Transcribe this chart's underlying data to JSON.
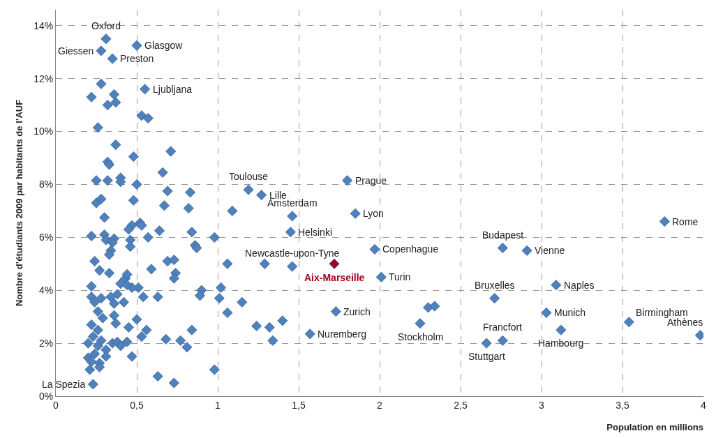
{
  "chart_data": {
    "type": "scatter",
    "xlabel": "Population en millions",
    "ylabel": "Nombre d’étudiants 2009 par habitants de l’AUF",
    "marker": "diamond",
    "grid": true,
    "xlim": [
      0,
      4
    ],
    "xticks": [
      0,
      {
        "value": 0.5,
        "label": "0,5"
      },
      1,
      {
        "value": 1.5,
        "label": "1,5"
      },
      2,
      {
        "value": 2.5,
        "label": "2,5"
      },
      3,
      {
        "value": 3.5,
        "label": "3,5"
      },
      4
    ],
    "ylim": [
      0,
      14.6
    ],
    "yticks": [
      {
        "value": 0,
        "label": "0%"
      },
      {
        "value": 2,
        "label": "2%"
      },
      {
        "value": 4,
        "label": "4%"
      },
      {
        "value": 6,
        "label": "6%"
      },
      {
        "value": 8,
        "label": "8%"
      },
      {
        "value": 10,
        "label": "10%"
      },
      {
        "value": 12,
        "label": "12%"
      },
      {
        "value": 14,
        "label": "14%"
      }
    ],
    "series": [
      {
        "color": "#4f81bd",
        "x": [
          0.31,
          0.28,
          0.35,
          0.5,
          0.55,
          0.28,
          0.22,
          0.36,
          0.37,
          0.32,
          0.53,
          0.57,
          0.26,
          0.37,
          0.71,
          0.48,
          0.32,
          0.33,
          0.66,
          0.25,
          0.32,
          0.4,
          0.4,
          0.5,
          0.83,
          0.69,
          1.19,
          1.27,
          0.25,
          0.28,
          0.48,
          0.67,
          0.82,
          1.09,
          0.3,
          1.46,
          1.85,
          1.8,
          1.45,
          3.76,
          0.47,
          0.45,
          0.52,
          0.53,
          0.64,
          0.84,
          0.98,
          0.57,
          0.22,
          0.3,
          0.31,
          0.36,
          0.35,
          0.46,
          0.46,
          0.34,
          0.33,
          0.86,
          0.87,
          0.59,
          1.97,
          2.76,
          2.91,
          1.46,
          1.29,
          1.06,
          2.01,
          0.24,
          0.27,
          0.33,
          0.69,
          0.73,
          0.74,
          0.73,
          0.43,
          0.44,
          0.4,
          0.22,
          0.22,
          0.51,
          0.54,
          0.28,
          0.34,
          0.38,
          0.47,
          0.44,
          0.63,
          0.9,
          0.89,
          1.02,
          1.01,
          1.06,
          1.15,
          3.09,
          2.71,
          3.03,
          1.73,
          2.3,
          2.34,
          2.25,
          3.54,
          3.98,
          3.12,
          2.76,
          2.66,
          1.57,
          1.24,
          1.32,
          1.4,
          1.34,
          0.24,
          0.26,
          0.29,
          0.36,
          0.36,
          0.37,
          0.42,
          0.5,
          0.45,
          0.56,
          0.53,
          0.22,
          0.26,
          0.23,
          0.28,
          0.2,
          0.26,
          0.31,
          0.35,
          0.38,
          0.4,
          0.44,
          0.47,
          0.2,
          0.22,
          0.27,
          0.24,
          0.31,
          0.21,
          0.27,
          0.68,
          0.77,
          0.81,
          0.84,
          0.98,
          0.63,
          0.73,
          0.23
        ],
        "values": [
          13.5,
          13.05,
          12.75,
          13.25,
          11.6,
          11.8,
          11.3,
          11.4,
          11.1,
          11.0,
          10.6,
          10.5,
          10.15,
          9.5,
          9.25,
          9.05,
          8.85,
          8.75,
          8.45,
          8.15,
          8.15,
          8.25,
          8.1,
          8.0,
          7.7,
          7.75,
          7.8,
          7.6,
          7.3,
          7.45,
          7.4,
          7.2,
          7.1,
          7.0,
          6.75,
          6.8,
          6.9,
          8.15,
          6.2,
          6.6,
          6.45,
          6.3,
          6.55,
          6.45,
          6.25,
          6.2,
          6.0,
          6.0,
          6.05,
          6.1,
          5.9,
          5.95,
          5.8,
          5.9,
          5.65,
          5.5,
          5.35,
          5.7,
          5.6,
          4.8,
          5.55,
          5.6,
          5.5,
          4.9,
          5.0,
          5.0,
          4.5,
          5.1,
          4.75,
          4.65,
          5.1,
          5.15,
          4.65,
          4.45,
          4.45,
          4.6,
          4.25,
          4.15,
          3.75,
          4.1,
          3.75,
          3.7,
          3.75,
          3.85,
          4.1,
          4.2,
          3.75,
          4.0,
          3.8,
          4.1,
          3.7,
          3.15,
          3.55,
          4.2,
          3.7,
          3.15,
          3.2,
          3.35,
          3.4,
          2.75,
          2.8,
          2.3,
          2.5,
          2.1,
          2.0,
          2.35,
          2.65,
          2.6,
          2.85,
          2.1,
          3.55,
          3.2,
          2.95,
          3.5,
          3.05,
          2.75,
          3.55,
          2.9,
          2.6,
          2.5,
          2.25,
          2.7,
          2.5,
          2.25,
          2.1,
          2.0,
          1.9,
          1.75,
          2.0,
          2.05,
          1.9,
          2.05,
          1.5,
          1.45,
          1.3,
          1.25,
          1.6,
          1.5,
          1.0,
          1.1,
          2.15,
          2.1,
          1.85,
          2.5,
          1.0,
          0.75,
          0.5,
          0.45
        ]
      },
      {
        "name": "Aix-Marseille",
        "color": "#a50021",
        "x": [
          1.72
        ],
        "values": [
          5.0
        ]
      }
    ],
    "annotations": [
      {
        "text": "Oxford",
        "x": 0.31,
        "y": 13.5
      },
      {
        "text": "Giessen",
        "x": 0.28,
        "y": 13.05
      },
      {
        "text": "Preston",
        "x": 0.35,
        "y": 12.75
      },
      {
        "text": "Glasgow",
        "x": 0.5,
        "y": 13.25
      },
      {
        "text": "Ljubljana",
        "x": 0.55,
        "y": 11.6
      },
      {
        "text": "Toulouse",
        "x": 1.19,
        "y": 7.8
      },
      {
        "text": "Lille",
        "x": 1.27,
        "y": 7.6
      },
      {
        "text": "Amsterdam",
        "x": 1.46,
        "y": 6.8
      },
      {
        "text": "Prague",
        "x": 1.8,
        "y": 8.15
      },
      {
        "text": "Lyon",
        "x": 1.85,
        "y": 6.9
      },
      {
        "text": "Helsinki",
        "x": 1.45,
        "y": 6.2
      },
      {
        "text": "Rome",
        "x": 3.76,
        "y": 6.6
      },
      {
        "text": "Copenhague",
        "x": 1.97,
        "y": 5.55
      },
      {
        "text": "Budapest",
        "x": 2.76,
        "y": 5.6
      },
      {
        "text": "Vienne",
        "x": 2.91,
        "y": 5.5
      },
      {
        "text": "Newcastle-upon-Tyne",
        "x": 1.46,
        "y": 4.9
      },
      {
        "text": "Turin",
        "x": 2.01,
        "y": 4.5
      },
      {
        "text": "Naples",
        "x": 3.09,
        "y": 4.2
      },
      {
        "text": "Bruxelles",
        "x": 2.71,
        "y": 3.7
      },
      {
        "text": "Munich",
        "x": 3.03,
        "y": 3.15
      },
      {
        "text": "Zurich",
        "x": 1.73,
        "y": 3.2
      },
      {
        "text": "Stockholm",
        "x": 2.25,
        "y": 2.75
      },
      {
        "text": "Birmingham",
        "x": 3.54,
        "y": 2.8
      },
      {
        "text": "Athènes",
        "x": 3.98,
        "y": 2.3
      },
      {
        "text": "Hambourg",
        "x": 3.12,
        "y": 2.5
      },
      {
        "text": "Francfort",
        "x": 2.76,
        "y": 2.1
      },
      {
        "text": "Stuttgart",
        "x": 2.66,
        "y": 2.0
      },
      {
        "text": "Nuremberg",
        "x": 1.57,
        "y": 2.35
      },
      {
        "text": "La Spezia",
        "x": 0.23,
        "y": 0.45
      }
    ]
  }
}
